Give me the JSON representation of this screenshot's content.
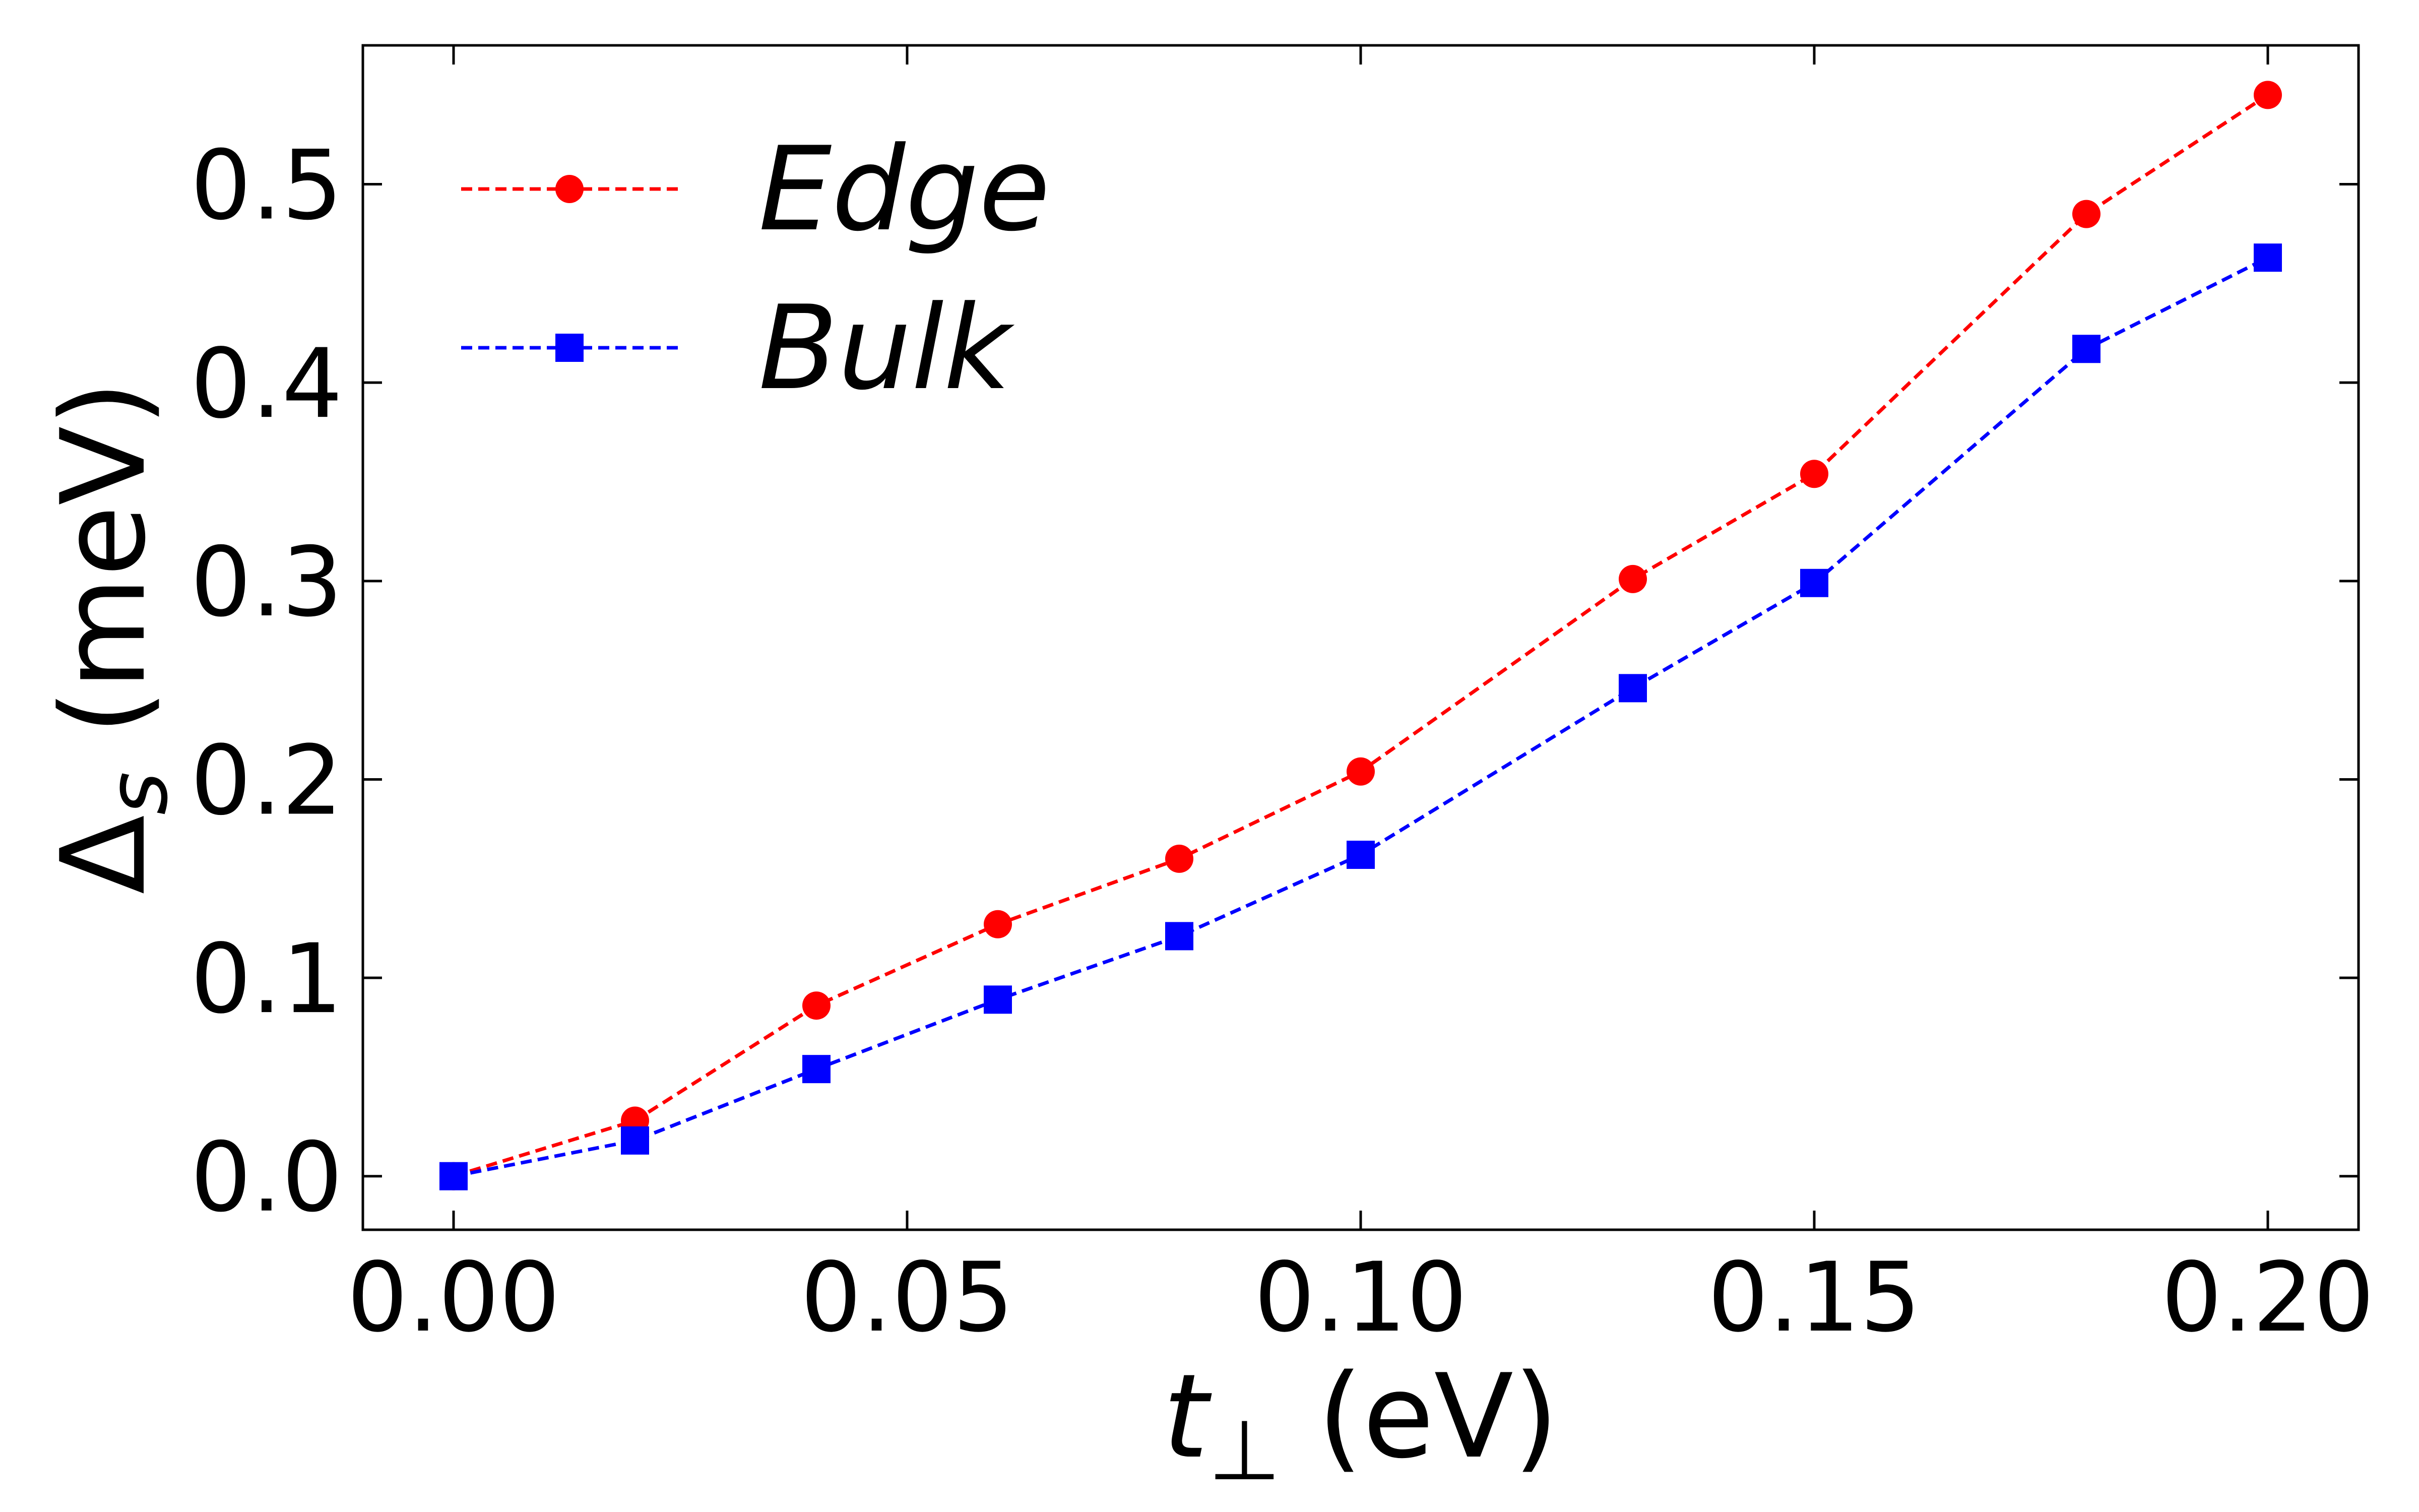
{
  "chart_data": {
    "type": "line",
    "title": "",
    "xlabel": {
      "italic": "t",
      "sub": "⊥",
      "rest": " (eV)"
    },
    "ylabel": {
      "main": "Δ",
      "sub": "s",
      "rest": " (meV)"
    },
    "xlim": [
      -0.01,
      0.21
    ],
    "ylim": [
      -0.027,
      0.57
    ],
    "xticks": [
      0.0,
      0.05,
      0.1,
      0.15,
      0.2
    ],
    "xtick_labels": [
      "0.00",
      "0.05",
      "0.10",
      "0.15",
      "0.20"
    ],
    "yticks": [
      0.0,
      0.1,
      0.2,
      0.3,
      0.4,
      0.5
    ],
    "ytick_labels": [
      "0.0",
      "0.1",
      "0.2",
      "0.3",
      "0.4",
      "0.5"
    ],
    "grid": false,
    "legend_position": "top-left",
    "x": [
      0.0,
      0.02,
      0.04,
      0.06,
      0.08,
      0.1,
      0.13,
      0.15,
      0.18,
      0.2
    ],
    "series": [
      {
        "name": "Edge",
        "color": "#ff0000",
        "marker": "circle",
        "linestyle": "dashed",
        "values": [
          0.0,
          0.028,
          0.086,
          0.127,
          0.16,
          0.204,
          0.301,
          0.354,
          0.485,
          0.545
        ]
      },
      {
        "name": "Bulk",
        "color": "#0000ff",
        "marker": "square",
        "linestyle": "dashed",
        "values": [
          0.0,
          0.018,
          0.054,
          0.089,
          0.121,
          0.162,
          0.246,
          0.299,
          0.417,
          0.463
        ]
      }
    ]
  }
}
